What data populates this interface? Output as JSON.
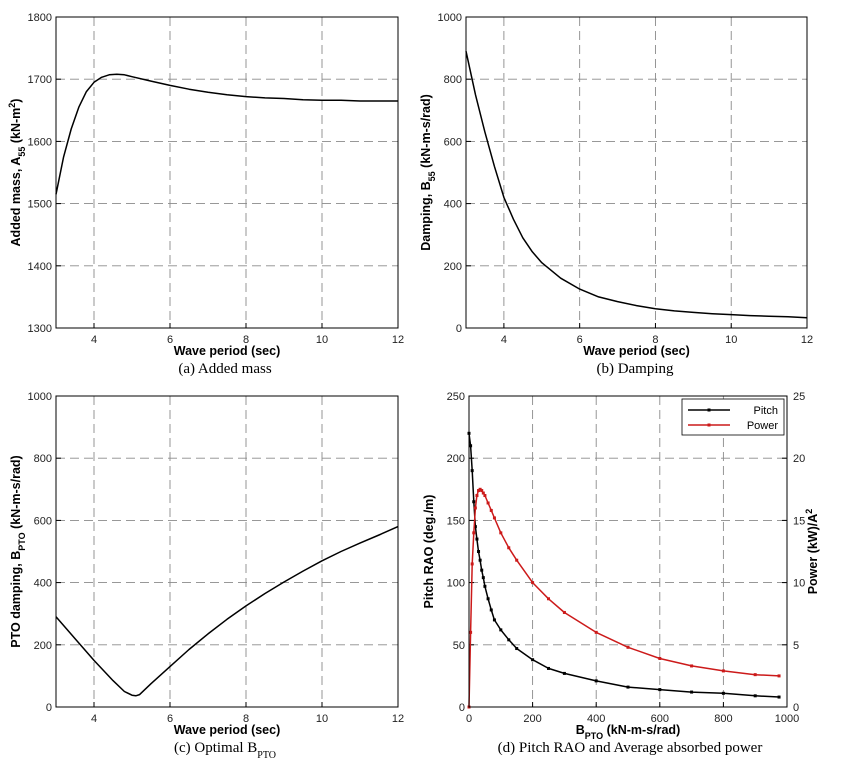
{
  "chart_data": [
    {
      "id": "a",
      "type": "line",
      "caption": "(a)  Added  mass",
      "xlabel": "Wave period (sec)",
      "ylabel": "Added mass, A",
      "ylabel_sub": "55",
      "ylabel_unit_pre": " (kN-m",
      "ylabel_unit_sup": "2",
      "ylabel_unit_post": ")",
      "xlim": [
        3,
        12
      ],
      "ylim": [
        1300,
        1800
      ],
      "xticks": [
        4,
        6,
        8,
        10,
        12
      ],
      "yticks": [
        1300,
        1400,
        1500,
        1600,
        1700,
        1800
      ],
      "grid": true,
      "series": [
        {
          "color": "#000000",
          "x": [
            3.0,
            3.2,
            3.4,
            3.6,
            3.8,
            4.0,
            4.2,
            4.4,
            4.6,
            4.8,
            5.0,
            5.5,
            6.0,
            6.5,
            7.0,
            7.5,
            8.0,
            8.5,
            9.0,
            9.5,
            10.0,
            10.5,
            11.0,
            11.5,
            12.0
          ],
          "y": [
            1515,
            1575,
            1620,
            1655,
            1680,
            1695,
            1703,
            1707,
            1708,
            1707,
            1704,
            1697,
            1690,
            1684,
            1679,
            1675,
            1672,
            1670,
            1669,
            1667,
            1666,
            1666,
            1665,
            1665,
            1665
          ]
        }
      ]
    },
    {
      "id": "b",
      "type": "line",
      "caption": "(b)  Damping",
      "xlabel": "Wave period (sec)",
      "ylabel": "Damping, B",
      "ylabel_sub": "55",
      "ylabel_unit_pre": " (kN-m-s/rad)",
      "ylabel_unit_sup": "",
      "ylabel_unit_post": "",
      "xlim": [
        3,
        12
      ],
      "ylim": [
        0,
        1000
      ],
      "xticks": [
        4,
        6,
        8,
        10,
        12
      ],
      "yticks": [
        0,
        200,
        400,
        600,
        800,
        1000
      ],
      "grid": true,
      "series": [
        {
          "color": "#000000",
          "x": [
            3.0,
            3.25,
            3.5,
            3.75,
            4.0,
            4.25,
            4.5,
            4.75,
            5.0,
            5.5,
            6.0,
            6.5,
            7.0,
            7.5,
            8.0,
            8.5,
            9.0,
            9.5,
            10.0,
            10.5,
            11.0,
            11.5,
            12.0
          ],
          "y": [
            890,
            750,
            630,
            520,
            420,
            350,
            290,
            245,
            210,
            160,
            125,
            100,
            85,
            72,
            62,
            55,
            50,
            46,
            43,
            40,
            38,
            36,
            33
          ]
        }
      ]
    },
    {
      "id": "c",
      "type": "line",
      "caption_main": "(c)  Optimal  B",
      "caption_sub": "PTO",
      "xlabel": "Wave period (sec)",
      "ylabel": "PTO damping, B",
      "ylabel_sub": "PTO",
      "ylabel_unit_pre": " (kN-m-s/rad)",
      "ylabel_unit_sup": "",
      "ylabel_unit_post": "",
      "xlim": [
        3,
        12
      ],
      "ylim": [
        0,
        1000
      ],
      "xticks": [
        4,
        6,
        8,
        10,
        12
      ],
      "yticks": [
        0,
        200,
        400,
        600,
        800,
        1000
      ],
      "grid": true,
      "series": [
        {
          "color": "#000000",
          "x": [
            3.0,
            3.5,
            4.0,
            4.5,
            4.8,
            5.0,
            5.1,
            5.2,
            5.5,
            6.0,
            6.5,
            7.0,
            7.5,
            8.0,
            8.5,
            9.0,
            9.5,
            10.0,
            10.5,
            11.0,
            11.5,
            12.0
          ],
          "y": [
            290,
            220,
            150,
            85,
            50,
            38,
            36,
            40,
            75,
            130,
            185,
            235,
            282,
            325,
            365,
            402,
            437,
            470,
            500,
            527,
            553,
            580
          ]
        }
      ]
    },
    {
      "id": "d",
      "type": "line",
      "caption": "(d)  Pitch  RAO  and  Average  absorbed  power",
      "xlabel": "B",
      "xlabel_sub": "PTO",
      "xlabel_post": " (kN-m-s/rad)",
      "ylabel": "Pitch RAO (deg./m)",
      "y2label": "Power (kW)/A",
      "y2label_sup": "2",
      "xlim": [
        0,
        1000
      ],
      "ylim": [
        0,
        250
      ],
      "y2lim": [
        0,
        25
      ],
      "xticks": [
        0,
        200,
        400,
        600,
        800,
        1000
      ],
      "yticks": [
        0,
        50,
        100,
        150,
        200,
        250
      ],
      "y2ticks": [
        0,
        5,
        10,
        15,
        20,
        25
      ],
      "grid": true,
      "legend": "top-right",
      "series": [
        {
          "name": "Pitch",
          "color": "#000000",
          "axis": "left",
          "x": [
            0,
            5,
            10,
            15,
            20,
            25,
            30,
            35,
            40,
            45,
            50,
            60,
            70,
            80,
            100,
            125,
            150,
            200,
            250,
            300,
            400,
            500,
            600,
            700,
            800,
            900,
            975
          ],
          "y": [
            220,
            210,
            190,
            165,
            145,
            135,
            125,
            118,
            110,
            104,
            97,
            87,
            78,
            70,
            62,
            54,
            47,
            38,
            31,
            27,
            21,
            16,
            14,
            12,
            11,
            9,
            8
          ]
        },
        {
          "name": "Power",
          "color": "#cc1a1a",
          "axis": "right",
          "x": [
            0,
            5,
            10,
            15,
            20,
            25,
            30,
            35,
            40,
            45,
            50,
            60,
            70,
            80,
            100,
            125,
            150,
            200,
            250,
            300,
            400,
            500,
            600,
            700,
            800,
            900,
            975
          ],
          "y": [
            0,
            6,
            11.5,
            14,
            16,
            17,
            17.4,
            17.5,
            17.4,
            17.2,
            17,
            16.4,
            15.8,
            15.2,
            14,
            12.8,
            11.8,
            10,
            8.7,
            7.6,
            6.0,
            4.8,
            3.9,
            3.3,
            2.9,
            2.6,
            2.5
          ]
        }
      ]
    }
  ]
}
